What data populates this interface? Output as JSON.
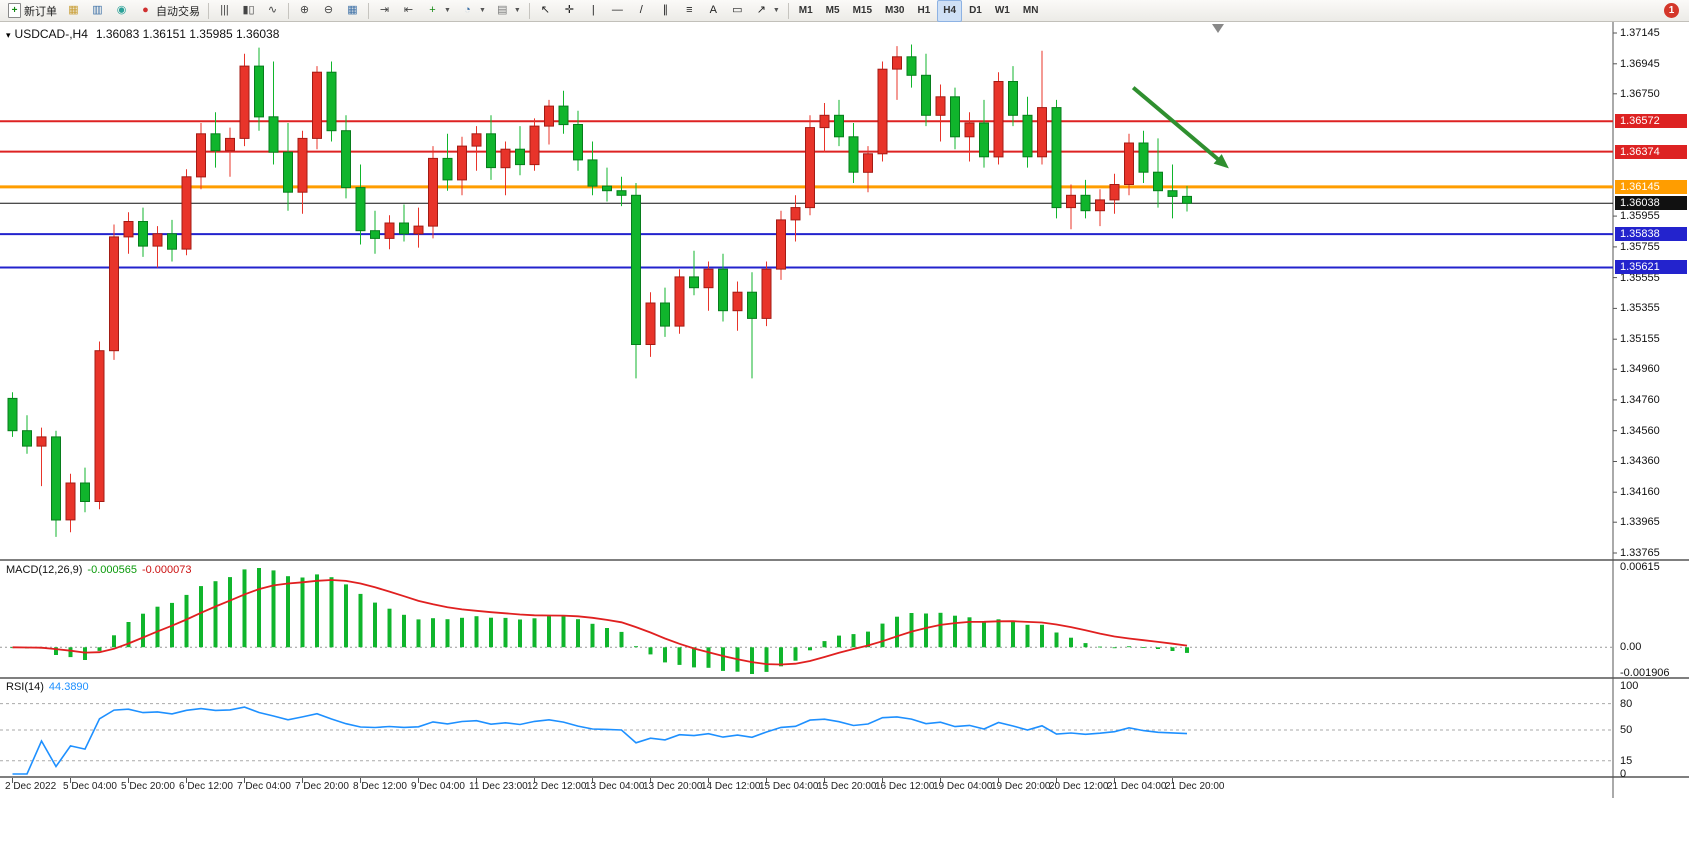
{
  "window": {
    "menu_icon_glyph": "▾",
    "instrument_header": "USDCAD-,H4",
    "ohlc": "1.36083 1.36151 1.35985 1.36038"
  },
  "toolbar": {
    "items": [
      {
        "name": "new-order-button",
        "icon": "new-order-icon",
        "glyph": "+",
        "glyph_color": "#148a14",
        "boxed": true,
        "label": "新订单"
      },
      {
        "name": "chart-window-button",
        "icon": "chart-window-icon",
        "glyph": "▦",
        "glyph_color": "#c79b2f"
      },
      {
        "name": "market-watch-button",
        "icon": "market-watch-icon",
        "glyph": "▥",
        "glyph_color": "#3a6ea5"
      },
      {
        "name": "navigator-button",
        "icon": "navigator-icon",
        "glyph": "◉",
        "glyph_color": "#2aa198"
      },
      {
        "name": "auto-trading-button",
        "icon": "auto-trading-icon",
        "glyph": "●",
        "glyph_color": "#d03030",
        "label": "自动交易"
      },
      {
        "sep": true
      },
      {
        "name": "bar-chart-button",
        "icon": "bar-chart-icon",
        "glyph": "|||",
        "glyph_color": "#444444"
      },
      {
        "name": "candlestick-chart-button",
        "icon": "candlestick-icon",
        "glyph": "▮▯",
        "glyph_color": "#444444"
      },
      {
        "name": "line-chart-button",
        "icon": "line-chart-icon",
        "glyph": "∿",
        "glyph_color": "#444444"
      },
      {
        "sep": true
      },
      {
        "name": "zoom-in-button",
        "icon": "zoom-in-icon",
        "glyph": "⊕",
        "glyph_color": "#444444"
      },
      {
        "name": "zoom-out-button",
        "icon": "zoom-out-icon",
        "glyph": "⊖",
        "glyph_color": "#444444"
      },
      {
        "name": "tile-windows-button",
        "icon": "tile-windows-icon",
        "glyph": "▦",
        "glyph_color": "#3a6ea5"
      },
      {
        "sep": true
      },
      {
        "name": "auto-scroll-button",
        "icon": "auto-scroll-icon",
        "glyph": "⇥",
        "glyph_color": "#444444"
      },
      {
        "name": "chart-shift-button",
        "icon": "chart-shift-icon",
        "glyph": "⇤",
        "glyph_color": "#444444"
      },
      {
        "name": "indicators-button",
        "icon": "indicators-icon",
        "glyph": "+",
        "glyph_color": "#148a14",
        "dropdown": true
      },
      {
        "name": "periods-button",
        "icon": "periods-icon",
        "glyph": "◔",
        "glyph_color": "#3a6ea5",
        "dropdown": true
      },
      {
        "name": "templates-button",
        "icon": "templates-icon",
        "glyph": "▤",
        "glyph_color": "#777777",
        "dropdown": true
      },
      {
        "sep": true
      },
      {
        "name": "cursor-button",
        "icon": "cursor-icon",
        "glyph": "↖",
        "glyph_color": "#222222"
      },
      {
        "name": "crosshair-button",
        "icon": "crosshair-icon",
        "glyph": "✛",
        "glyph_color": "#222222"
      },
      {
        "name": "vertical-line-button",
        "icon": "vertical-line-icon",
        "glyph": "|",
        "glyph_color": "#222222"
      },
      {
        "name": "horizontal-line-button",
        "icon": "horizontal-line-icon",
        "glyph": "—",
        "glyph_color": "#222222"
      },
      {
        "name": "trendline-button",
        "icon": "trendline-icon",
        "glyph": "/",
        "glyph_color": "#222222"
      },
      {
        "name": "channel-button",
        "icon": "channel-icon",
        "glyph": "∥",
        "glyph_color": "#222222"
      },
      {
        "name": "fibonacci-button",
        "icon": "fibonacci-icon",
        "glyph": "≡",
        "glyph_color": "#222222"
      },
      {
        "name": "text-button",
        "icon": "text-icon",
        "glyph": "A",
        "glyph_color": "#222222"
      },
      {
        "name": "label-button",
        "icon": "label-icon",
        "glyph": "▭",
        "glyph_color": "#222222"
      },
      {
        "name": "arrows-button",
        "icon": "arrows-icon",
        "glyph": "↗",
        "glyph_color": "#222222",
        "dropdown": true
      },
      {
        "sep": true
      }
    ],
    "timeframes": [
      "M1",
      "M5",
      "M15",
      "M30",
      "H1",
      "H4",
      "D1",
      "W1",
      "MN"
    ],
    "active_timeframe": "H4",
    "notification_count": "1"
  },
  "price_axis": {
    "labels": [
      "1.37145",
      "1.36945",
      "1.36750",
      "1.35955",
      "1.35755",
      "1.35555",
      "1.35355",
      "1.35155",
      "1.34960",
      "1.34760",
      "1.34560",
      "1.34360",
      "1.34160",
      "1.33965",
      "1.33765"
    ]
  },
  "main_chart": {
    "arrow": {
      "from_index": 77.6,
      "from_price": 1.3679,
      "to_index": 84.2,
      "to_price": 1.36265,
      "color": "#2f8f2f"
    }
  },
  "macd": {
    "title": "MACD(12,26,9)",
    "value_main": "-0.000565",
    "value_signal": "-0.000073",
    "axis": [
      "0.00615",
      "0.00",
      "-0.001906"
    ],
    "histogram_color": "#10b52c",
    "signal_color": "#e02020"
  },
  "rsi": {
    "title": "RSI(14)",
    "value": "44.3890",
    "axis_labels": [
      "100",
      "80",
      "50",
      "15",
      "0"
    ],
    "levels": [
      80,
      50,
      15
    ],
    "line_color": "#1E90FF"
  },
  "time_axis": {
    "labels": [
      "2 Dec 2022",
      "5 Dec 04:00",
      "5 Dec 20:00",
      "6 Dec 12:00",
      "7 Dec 04:00",
      "7 Dec 20:00",
      "8 Dec 12:00",
      "9 Dec 04:00",
      "11 Dec 23:00",
      "12 Dec 12:00",
      "13 Dec 04:00",
      "13 Dec 20:00",
      "14 Dec 12:00",
      "15 Dec 04:00",
      "15 Dec 20:00",
      "16 Dec 12:00",
      "19 Dec 04:00",
      "19 Dec 20:00",
      "20 Dec 12:00",
      "21 Dec 04:00",
      "21 Dec 20:00"
    ]
  },
  "chart_data": {
    "type": "candlestick",
    "symbol": "USDCAD",
    "timeframe": "H4",
    "title": "USDCAD-,H4",
    "price_range": [
      1.33765,
      1.37145
    ],
    "up_color": "#e8342a",
    "up_border": "#a31b14",
    "down_color": "#10b52c",
    "down_border": "#077d1c",
    "hlines": [
      {
        "price": 1.36572,
        "label": "1.36572",
        "color": "#dd2222",
        "width": 2
      },
      {
        "price": 1.36374,
        "label": "1.36374",
        "color": "#dd2222",
        "width": 2
      },
      {
        "price": 1.36145,
        "label": "1.36145",
        "color": "#ff9d00",
        "width": 3
      },
      {
        "price": 1.36038,
        "label": "1.36038",
        "color": "#111111",
        "width": 1,
        "role": "current-price"
      },
      {
        "price": 1.35838,
        "label": "1.35838",
        "color": "#2323cd",
        "width": 2
      },
      {
        "price": 1.35621,
        "label": "1.35621",
        "color": "#2323cd",
        "width": 2
      }
    ],
    "candles": [
      [
        1.3477,
        1.3481,
        1.3452,
        1.3456
      ],
      [
        1.3456,
        1.3466,
        1.3441,
        1.3446
      ],
      [
        1.3446,
        1.3458,
        1.342,
        1.3452
      ],
      [
        1.3452,
        1.3456,
        1.3387,
        1.3398
      ],
      [
        1.3398,
        1.3428,
        1.339,
        1.3422
      ],
      [
        1.3422,
        1.3432,
        1.3403,
        1.341
      ],
      [
        1.341,
        1.3514,
        1.3405,
        1.3508
      ],
      [
        1.3508,
        1.359,
        1.3502,
        1.3582
      ],
      [
        1.3582,
        1.3598,
        1.3571,
        1.3592
      ],
      [
        1.3592,
        1.3601,
        1.3569,
        1.3576
      ],
      [
        1.3576,
        1.3589,
        1.3562,
        1.3584
      ],
      [
        1.3584,
        1.3593,
        1.3566,
        1.3574
      ],
      [
        1.3574,
        1.3626,
        1.357,
        1.3621
      ],
      [
        1.3621,
        1.3656,
        1.3613,
        1.3649
      ],
      [
        1.3649,
        1.3663,
        1.3627,
        1.3638
      ],
      [
        1.3638,
        1.3653,
        1.3621,
        1.3646
      ],
      [
        1.3646,
        1.3701,
        1.3641,
        1.3693
      ],
      [
        1.3693,
        1.3705,
        1.3651,
        1.366
      ],
      [
        1.366,
        1.3696,
        1.3629,
        1.3637
      ],
      [
        1.3637,
        1.3656,
        1.3599,
        1.3611
      ],
      [
        1.3611,
        1.3651,
        1.3597,
        1.3646
      ],
      [
        1.3646,
        1.3693,
        1.3639,
        1.3689
      ],
      [
        1.3689,
        1.3696,
        1.3644,
        1.3651
      ],
      [
        1.3651,
        1.3661,
        1.3607,
        1.3614
      ],
      [
        1.3614,
        1.3629,
        1.3577,
        1.3586
      ],
      [
        1.3586,
        1.3599,
        1.3571,
        1.3581
      ],
      [
        1.3581,
        1.3596,
        1.3574,
        1.3591
      ],
      [
        1.3591,
        1.3603,
        1.3579,
        1.3584
      ],
      [
        1.3584,
        1.3601,
        1.3575,
        1.3589
      ],
      [
        1.3589,
        1.3641,
        1.3581,
        1.3633
      ],
      [
        1.3633,
        1.3649,
        1.3612,
        1.3619
      ],
      [
        1.3619,
        1.3647,
        1.3609,
        1.3641
      ],
      [
        1.3641,
        1.3654,
        1.3625,
        1.3649
      ],
      [
        1.3649,
        1.3661,
        1.3619,
        1.3627
      ],
      [
        1.3627,
        1.3644,
        1.3609,
        1.3639
      ],
      [
        1.3639,
        1.3654,
        1.3622,
        1.3629
      ],
      [
        1.3629,
        1.3659,
        1.3625,
        1.3654
      ],
      [
        1.3654,
        1.3671,
        1.3642,
        1.3667
      ],
      [
        1.3667,
        1.3677,
        1.3649,
        1.3655
      ],
      [
        1.3655,
        1.3664,
        1.3625,
        1.3632
      ],
      [
        1.3632,
        1.3644,
        1.3609,
        1.3615
      ],
      [
        1.3615,
        1.3627,
        1.3605,
        1.3612
      ],
      [
        1.3612,
        1.3621,
        1.3602,
        1.3609
      ],
      [
        1.3609,
        1.3617,
        1.349,
        1.3512
      ],
      [
        1.3512,
        1.3546,
        1.3504,
        1.3539
      ],
      [
        1.3539,
        1.3549,
        1.3517,
        1.3524
      ],
      [
        1.3524,
        1.3561,
        1.3519,
        1.3556
      ],
      [
        1.3556,
        1.3573,
        1.3544,
        1.3549
      ],
      [
        1.3549,
        1.3566,
        1.3534,
        1.3561
      ],
      [
        1.3561,
        1.3571,
        1.3527,
        1.3534
      ],
      [
        1.3534,
        1.3553,
        1.3521,
        1.3546
      ],
      [
        1.3546,
        1.3559,
        1.349,
        1.3529
      ],
      [
        1.3529,
        1.3566,
        1.3524,
        1.3561
      ],
      [
        1.3561,
        1.3599,
        1.3554,
        1.3593
      ],
      [
        1.3593,
        1.3609,
        1.3579,
        1.3601
      ],
      [
        1.3601,
        1.3661,
        1.3596,
        1.3653
      ],
      [
        1.3653,
        1.3669,
        1.3637,
        1.3661
      ],
      [
        1.3661,
        1.3671,
        1.3641,
        1.3647
      ],
      [
        1.3647,
        1.3656,
        1.3617,
        1.3624
      ],
      [
        1.3624,
        1.3641,
        1.3611,
        1.3636
      ],
      [
        1.3636,
        1.3696,
        1.3631,
        1.3691
      ],
      [
        1.3691,
        1.3706,
        1.3671,
        1.3699
      ],
      [
        1.3699,
        1.3707,
        1.3679,
        1.3687
      ],
      [
        1.3687,
        1.3701,
        1.3654,
        1.3661
      ],
      [
        1.3661,
        1.3681,
        1.3644,
        1.3673
      ],
      [
        1.3673,
        1.3679,
        1.3639,
        1.3647
      ],
      [
        1.3647,
        1.3663,
        1.3631,
        1.3656
      ],
      [
        1.3656,
        1.3671,
        1.3627,
        1.3634
      ],
      [
        1.3634,
        1.3689,
        1.3629,
        1.3683
      ],
      [
        1.3683,
        1.3693,
        1.3654,
        1.3661
      ],
      [
        1.3661,
        1.3673,
        1.3627,
        1.3634
      ],
      [
        1.3634,
        1.3703,
        1.3629,
        1.3666
      ],
      [
        1.3666,
        1.3671,
        1.3594,
        1.3601
      ],
      [
        1.3601,
        1.3616,
        1.3587,
        1.3609
      ],
      [
        1.3609,
        1.3619,
        1.3594,
        1.3599
      ],
      [
        1.3599,
        1.3613,
        1.3589,
        1.3606
      ],
      [
        1.3606,
        1.3623,
        1.3597,
        1.3616
      ],
      [
        1.3616,
        1.3649,
        1.3609,
        1.3643
      ],
      [
        1.3643,
        1.3651,
        1.3617,
        1.3624
      ],
      [
        1.3624,
        1.3646,
        1.3601,
        1.3612
      ],
      [
        1.3612,
        1.3629,
        1.3594,
        1.36083
      ],
      [
        1.36083,
        1.36151,
        1.35985,
        1.36038
      ]
    ]
  }
}
